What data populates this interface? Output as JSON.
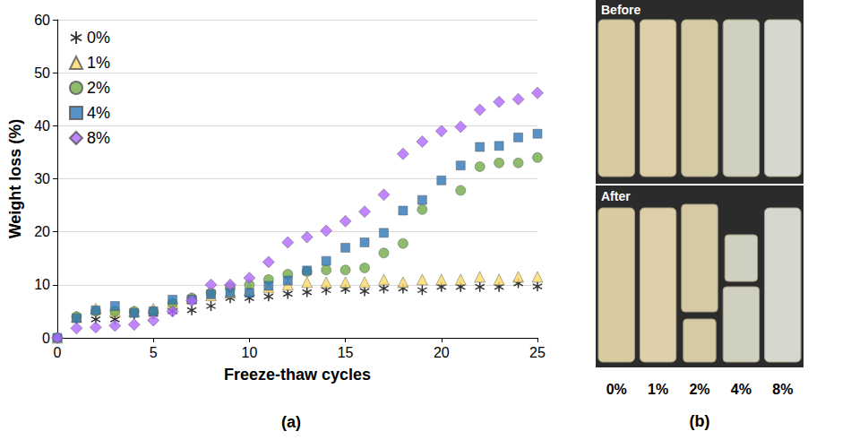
{
  "chart_data": {
    "type": "scatter",
    "panel_label": "(a)",
    "xlabel": "Freeze-thaw cycles",
    "ylabel": "Weight loss (%)",
    "xlim": [
      0,
      25
    ],
    "xticks": [
      0,
      5,
      10,
      15,
      20,
      25
    ],
    "ylim": [
      0,
      60
    ],
    "yticks": [
      0,
      10,
      20,
      30,
      40,
      50,
      60
    ],
    "grid": true,
    "legend": "upper left",
    "x": [
      0,
      1,
      2,
      3,
      4,
      5,
      6,
      7,
      8,
      9,
      10,
      11,
      12,
      13,
      14,
      15,
      16,
      17,
      18,
      19,
      20,
      21,
      22,
      23,
      24,
      25
    ],
    "series": [
      {
        "name": "0%",
        "color": "#000000",
        "marker": "asterisk",
        "values": [
          0,
          3.5,
          3.5,
          3.5,
          4.5,
          4.5,
          5,
          5.2,
          6,
          7.5,
          7.5,
          7.8,
          8.3,
          8.6,
          9,
          9.2,
          8.8,
          9.3,
          9.3,
          9,
          9.6,
          9.6,
          9.6,
          9.6,
          10.3,
          9.7
        ]
      },
      {
        "name": "1%",
        "color": "#ffd966",
        "marker": "triangle",
        "values": [
          0,
          4,
          5.5,
          5,
          5,
          5.5,
          6.5,
          7.5,
          8,
          8.5,
          9,
          9.5,
          10,
          10.5,
          10.5,
          10.5,
          10.5,
          11,
          10.5,
          11,
          11,
          11,
          11.5,
          11,
          11.5,
          11.5
        ]
      },
      {
        "name": "2%",
        "color": "#70ad47",
        "marker": "circle",
        "values": [
          0,
          4,
          5,
          5,
          5,
          5,
          6.5,
          7.5,
          8.5,
          9.5,
          10,
          11,
          12,
          12.5,
          12.8,
          12.8,
          13.2,
          16,
          17.8,
          24.2,
          null,
          27.8,
          32.3,
          33,
          33,
          34
        ]
      },
      {
        "name": "4%",
        "color": "#2e75b6",
        "marker": "square",
        "values": [
          0,
          3.7,
          5.2,
          6,
          4.7,
          5,
          7.2,
          7.2,
          8.2,
          8.5,
          8.5,
          9.8,
          10.8,
          12.7,
          14.5,
          17,
          18,
          19.8,
          24,
          26,
          29.7,
          32.5,
          36,
          36.2,
          37.8,
          38.5
        ]
      },
      {
        "name": "8%",
        "color": "#b266ff",
        "marker": "diamond",
        "values": [
          0,
          1.8,
          2,
          2.3,
          2.5,
          3.3,
          5,
          7,
          10,
          10,
          11.3,
          14.3,
          18,
          19,
          20.2,
          22,
          23.8,
          27,
          34.7,
          37,
          39,
          39.8,
          43,
          44.5,
          45,
          46.2
        ]
      }
    ]
  },
  "photo_panel": {
    "panel_label": "(b)",
    "before_label": "Before",
    "after_label": "After",
    "samples": [
      "0%",
      "1%",
      "2%",
      "4%",
      "8%"
    ]
  }
}
